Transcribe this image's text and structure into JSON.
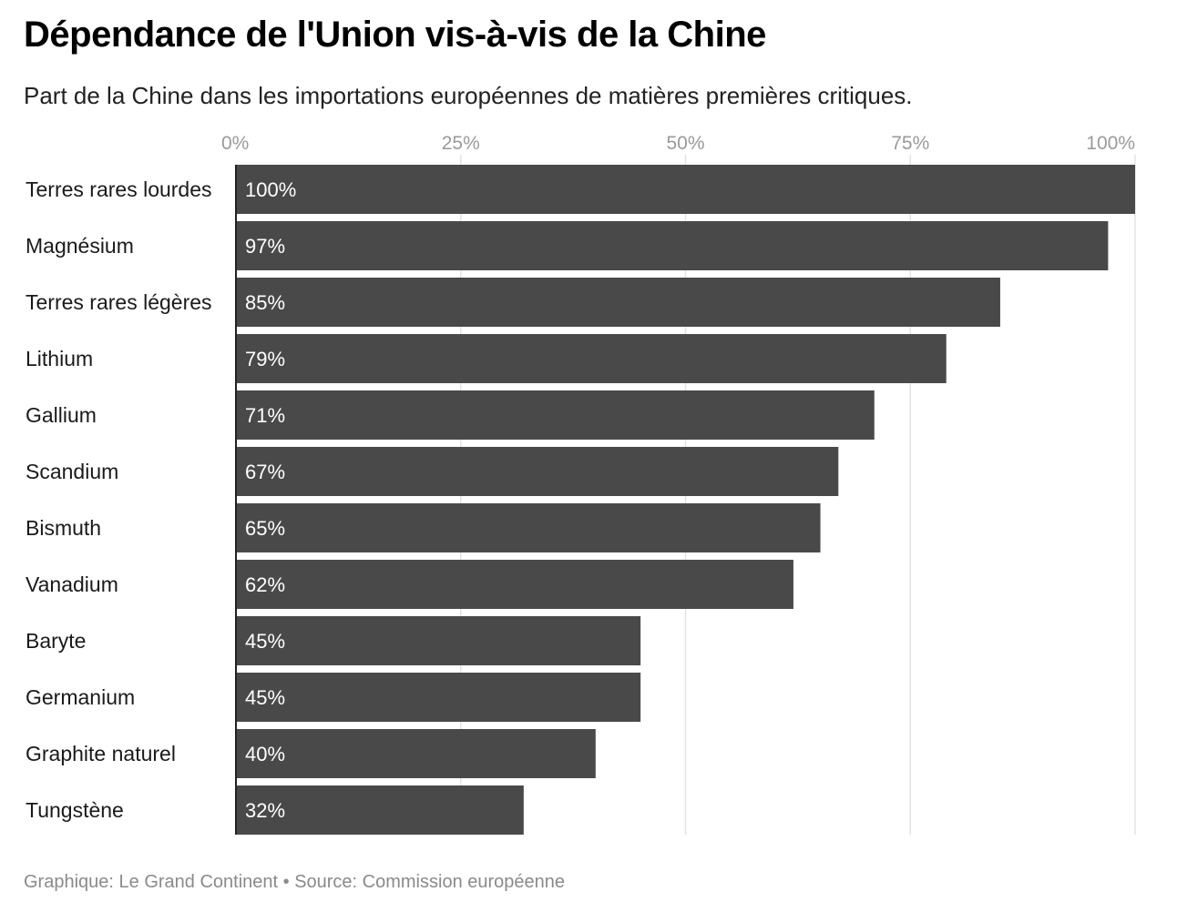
{
  "header": {
    "title": "Dépendance de l'Union vis-à-vis de la Chine",
    "subtitle": "Part de la Chine dans les importations européennes de matières premières critiques."
  },
  "footer": {
    "credit": "Graphique: Le Grand Continent • Source: Commission européenne"
  },
  "chart_data": {
    "type": "bar",
    "orientation": "horizontal",
    "title": "Dépendance de l'Union vis-à-vis de la Chine",
    "subtitle": "Part de la Chine dans les importations européennes de matières premières critiques.",
    "categories": [
      "Terres rares lourdes",
      "Magnésium",
      "Terres rares légères",
      "Lithium",
      "Gallium",
      "Scandium",
      "Bismuth",
      "Vanadium",
      "Baryte",
      "Germanium",
      "Graphite naturel",
      "Tungstène"
    ],
    "values": [
      100,
      97,
      85,
      79,
      71,
      67,
      65,
      62,
      45,
      45,
      40,
      32
    ],
    "value_labels": [
      "100%",
      "97%",
      "85%",
      "79%",
      "71%",
      "67%",
      "65%",
      "62%",
      "45%",
      "45%",
      "40%",
      "32%"
    ],
    "xlim": [
      0,
      100
    ],
    "ticks": [
      0,
      25,
      50,
      75,
      100
    ],
    "tick_labels": [
      "0%",
      "25%",
      "50%",
      "75%",
      "100%"
    ],
    "axis_position": "top",
    "grid": true,
    "bar_color": "#494949",
    "grid_color": "#e3e3e3",
    "value_label_color": "#ffffff"
  }
}
